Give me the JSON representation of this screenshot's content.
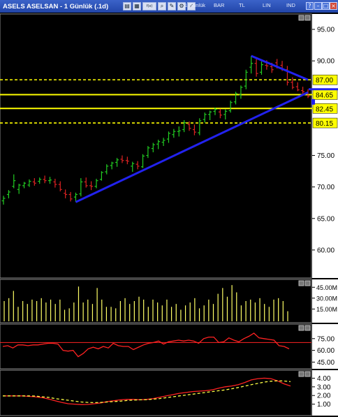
{
  "window": {
    "title": "ASELS ASELSAN - 1 Günlük (.1d)",
    "toolbar": {
      "period": "1 Günlük",
      "bar": "BAR",
      "tl": "TL",
      "lin": "LIN",
      "ind": "IND"
    }
  },
  "colors": {
    "up": "#22cc22",
    "down": "#dd2222",
    "trend": "#2222ee",
    "hline": "#ffff00",
    "axis_bg": "#ffffff",
    "volume": "#ffff66",
    "rsi": "#ff2222",
    "macd": "#ff2222",
    "macd_signal": "#ffff44"
  },
  "chart_data": [
    {
      "type": "ohlc",
      "yaxis_ticks": [
        "95.00",
        "90.00",
        "87.00",
        "84.65",
        "82.45",
        "80.15",
        "75.00",
        "70.00",
        "65.00",
        "60.00"
      ],
      "ylim": [
        56,
        97
      ],
      "candles": [
        [
          67.8,
          68.6,
          67.2,
          68.2
        ],
        [
          68.8,
          69.5,
          68.2,
          69.2
        ],
        [
          70.1,
          72.0,
          69.8,
          71.0
        ],
        [
          69.6,
          70.5,
          68.9,
          70.3
        ],
        [
          70.2,
          70.8,
          69.8,
          70.6
        ],
        [
          70.3,
          71.2,
          70.0,
          70.9
        ],
        [
          70.8,
          71.4,
          70.2,
          70.6
        ],
        [
          70.9,
          71.5,
          70.5,
          71.2
        ],
        [
          71.2,
          71.8,
          70.6,
          71.0
        ],
        [
          71.0,
          71.6,
          70.5,
          71.1
        ],
        [
          70.8,
          71.3,
          69.9,
          70.4
        ],
        [
          70.4,
          70.9,
          69.3,
          69.6
        ],
        [
          69.0,
          69.6,
          68.2,
          68.8
        ],
        [
          68.8,
          69.2,
          67.7,
          68.1
        ],
        [
          68.4,
          69.1,
          67.6,
          68.8
        ],
        [
          68.9,
          71.4,
          68.5,
          70.8
        ],
        [
          70.8,
          71.5,
          69.9,
          70.2
        ],
        [
          70.2,
          70.9,
          69.5,
          70.1
        ],
        [
          70.1,
          71.3,
          69.8,
          71.0
        ],
        [
          71.2,
          72.5,
          71.0,
          72.3
        ],
        [
          72.4,
          73.6,
          72.0,
          73.3
        ],
        [
          73.4,
          74.0,
          72.8,
          73.8
        ],
        [
          73.9,
          74.6,
          73.2,
          74.3
        ],
        [
          74.4,
          75.0,
          73.8,
          74.2
        ],
        [
          74.2,
          74.8,
          73.6,
          74.1
        ],
        [
          73.3,
          74.0,
          72.4,
          73.7
        ],
        [
          73.6,
          74.1,
          72.8,
          73.3
        ],
        [
          73.2,
          75.2,
          73.0,
          74.9
        ],
        [
          75.0,
          76.5,
          74.6,
          76.2
        ],
        [
          76.1,
          77.0,
          75.5,
          76.7
        ],
        [
          76.8,
          77.5,
          76.0,
          77.2
        ],
        [
          77.1,
          77.8,
          76.5,
          77.4
        ],
        [
          77.6,
          78.8,
          77.0,
          78.5
        ],
        [
          78.3,
          79.2,
          77.8,
          78.8
        ],
        [
          78.8,
          79.6,
          78.0,
          78.9
        ],
        [
          79.1,
          80.6,
          78.7,
          80.2
        ],
        [
          79.9,
          80.4,
          78.9,
          79.3
        ],
        [
          79.1,
          79.9,
          78.2,
          78.7
        ],
        [
          78.6,
          80.9,
          78.2,
          80.5
        ],
        [
          80.7,
          81.8,
          80.2,
          81.5
        ],
        [
          81.5,
          82.1,
          80.6,
          81.9
        ],
        [
          82.0,
          82.6,
          81.4,
          82.3
        ],
        [
          81.9,
          82.4,
          80.9,
          81.4
        ],
        [
          81.5,
          82.3,
          80.7,
          82.0
        ],
        [
          82.1,
          83.7,
          81.8,
          83.4
        ],
        [
          83.5,
          85.1,
          83.1,
          84.8
        ],
        [
          84.6,
          86.1,
          84.0,
          85.8
        ],
        [
          86.0,
          88.6,
          85.5,
          88.2
        ],
        [
          89.0,
          90.8,
          88.0,
          89.6
        ],
        [
          89.6,
          90.5,
          87.5,
          88.0
        ],
        [
          88.2,
          89.9,
          87.8,
          89.4
        ],
        [
          89.3,
          90.1,
          88.6,
          89.2
        ],
        [
          89.1,
          89.7,
          88.1,
          88.6
        ],
        [
          89.7,
          90.3,
          88.8,
          89.0
        ],
        [
          89.3,
          90.0,
          88.4,
          88.7
        ],
        [
          88.6,
          89.2,
          86.1,
          86.6
        ],
        [
          86.6,
          87.4,
          85.5,
          85.8
        ],
        [
          85.9,
          86.6,
          85.2,
          85.4
        ],
        [
          85.3,
          85.9,
          84.5,
          85.1
        ],
        [
          84.9,
          85.5,
          84.1,
          84.4
        ]
      ],
      "hlines": [
        {
          "value": 87.0,
          "style": "dashed",
          "label": "87.00"
        },
        {
          "value": 84.65,
          "style": "solid",
          "label": "84.65"
        },
        {
          "value": 82.45,
          "style": "solid",
          "label": "82.45"
        },
        {
          "value": 80.15,
          "style": "dashed",
          "label": "80.15"
        }
      ]
    },
    {
      "type": "bar",
      "yaxis_ticks": [
        "45.00M",
        "30.00M",
        "15.00M"
      ],
      "ylim": [
        0,
        52
      ],
      "values": [
        26,
        30,
        40,
        18,
        26,
        22,
        28,
        26,
        30,
        24,
        28,
        22,
        28,
        14,
        16,
        24,
        46,
        24,
        28,
        22,
        44,
        28,
        18,
        18,
        16,
        26,
        30,
        22,
        26,
        32,
        28,
        18,
        28,
        24,
        20,
        28,
        18,
        22,
        14,
        20,
        24,
        30,
        16,
        20,
        28,
        22,
        36,
        44,
        32,
        48,
        38,
        20,
        26,
        28,
        24,
        30,
        22,
        18,
        28,
        30,
        26,
        12
      ]
    },
    {
      "type": "line",
      "yaxis_ticks": [
        "75.00",
        "60.00",
        "45.00"
      ],
      "ylim": [
        40,
        90
      ],
      "reference_line": 70,
      "values": [
        65,
        66,
        63,
        67,
        67,
        66,
        67,
        67,
        68,
        69,
        69,
        68,
        60,
        59,
        60,
        52,
        56,
        62,
        64,
        62,
        65,
        63,
        69,
        66,
        65,
        65,
        61,
        64,
        67,
        69,
        70,
        72,
        68,
        71,
        72,
        73,
        72,
        73,
        72,
        69,
        75,
        77,
        77,
        70,
        71,
        76,
        73,
        71,
        75,
        78,
        82,
        76,
        75,
        74,
        73,
        66,
        65,
        62
      ]
    },
    {
      "type": "line",
      "yaxis_ticks": [
        "4.00",
        "3.00",
        "2.00",
        "1.00"
      ],
      "ylim": [
        0,
        4.6
      ],
      "series": [
        {
          "values": [
            1.95,
            1.95,
            1.95,
            1.95,
            1.9,
            1.85,
            1.75,
            1.6,
            1.4,
            1.2,
            1.05,
            1.0,
            0.95,
            0.97,
            1.05,
            1.15,
            1.3,
            1.4,
            1.5,
            1.55,
            1.55,
            1.5,
            1.55,
            1.65,
            1.8,
            1.95,
            2.1,
            2.25,
            2.35,
            2.45,
            2.5,
            2.55,
            2.65,
            2.85,
            3.0,
            3.1,
            3.25,
            3.5,
            3.8,
            3.95,
            4.0,
            3.95,
            3.7,
            3.35,
            3.1
          ]
        },
        {
          "values": [
            1.95,
            1.95,
            1.95,
            1.95,
            1.95,
            1.93,
            1.85,
            1.78,
            1.65,
            1.55,
            1.45,
            1.35,
            1.25,
            1.2,
            1.18,
            1.2,
            1.25,
            1.3,
            1.35,
            1.42,
            1.48,
            1.5,
            1.52,
            1.58,
            1.65,
            1.75,
            1.85,
            1.95,
            2.05,
            2.15,
            2.25,
            2.35,
            2.45,
            2.55,
            2.65,
            2.78,
            2.92,
            3.08,
            3.25,
            3.4,
            3.55,
            3.65,
            3.7,
            3.68,
            3.6
          ]
        }
      ]
    }
  ]
}
